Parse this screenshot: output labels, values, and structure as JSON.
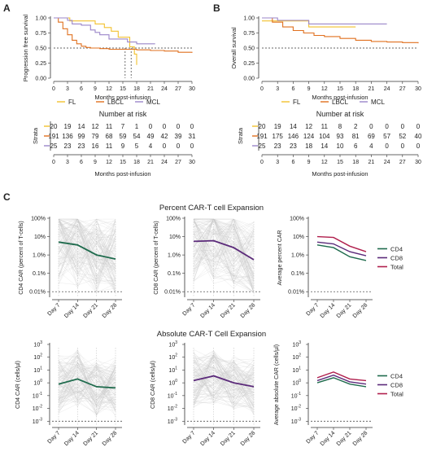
{
  "panel_labels": {
    "a": "A",
    "b": "B",
    "c": "C"
  },
  "section_titles": {
    "percent": "Percent CAR-T cell Expansion",
    "absolute": "Absolute CAR-T Cell Expansion"
  },
  "colors": {
    "FL": "#f2c12e",
    "LBCL": "#e0701f",
    "MCL": "#9b86c9",
    "CD4": "#1f6b4d",
    "CD8": "#5b2a7a",
    "Total": "#b01e4c",
    "grey": "#c8c8c8"
  },
  "km_legend": [
    {
      "key": "FL",
      "label": "FL"
    },
    {
      "key": "LBCL",
      "label": "LBCL"
    },
    {
      "key": "MCL",
      "label": "MCL"
    }
  ],
  "risk_title": "Number at risk",
  "strata_label": "Strata",
  "chart_data": [
    {
      "id": "pfs",
      "type": "line",
      "ylabel": "Progression free survival",
      "xlabel": "Months post-infusion",
      "x_ticks": [
        0,
        3,
        6,
        9,
        12,
        15,
        18,
        21,
        24,
        27,
        30
      ],
      "y_ticks": [
        0.0,
        0.25,
        0.5,
        0.75,
        1.0
      ],
      "y_tick_labels": [
        "0.00",
        "0.25",
        "0.50",
        "0.75",
        "1.00"
      ],
      "xlim": [
        0,
        30
      ],
      "ylim": [
        0,
        1
      ],
      "median_line": 0.5,
      "medians": [
        {
          "x": 15.5,
          "series": "FL"
        },
        {
          "x": 16.8,
          "series": "LBCL"
        }
      ],
      "series": [
        {
          "name": "FL",
          "x": [
            0,
            3.5,
            5,
            9,
            11,
            12.5,
            14,
            16.5,
            17.5,
            18
          ],
          "y": [
            1,
            0.95,
            0.95,
            0.9,
            0.84,
            0.78,
            0.68,
            0.52,
            0.4,
            0.22
          ]
        },
        {
          "name": "LBCL",
          "x": [
            0,
            1,
            2,
            3,
            4,
            5,
            6,
            7,
            8,
            9,
            10,
            12,
            15,
            18,
            21,
            24,
            27,
            30
          ],
          "y": [
            1,
            0.93,
            0.82,
            0.72,
            0.63,
            0.57,
            0.53,
            0.51,
            0.5,
            0.5,
            0.49,
            0.48,
            0.48,
            0.47,
            0.46,
            0.45,
            0.43,
            0.42
          ]
        },
        {
          "name": "MCL",
          "x": [
            0,
            3,
            4,
            6,
            8,
            9,
            10,
            12,
            16,
            18,
            22
          ],
          "y": [
            1,
            0.96,
            0.9,
            0.88,
            0.8,
            0.76,
            0.72,
            0.65,
            0.6,
            0.57,
            0.57
          ]
        }
      ],
      "risk_table": [
        {
          "series": "FL",
          "values": [
            20,
            19,
            14,
            12,
            11,
            7,
            1,
            0,
            0,
            0,
            0
          ]
        },
        {
          "series": "LBCL",
          "values": [
            191,
            136,
            99,
            79,
            68,
            59,
            54,
            49,
            42,
            39,
            31
          ]
        },
        {
          "series": "MCL",
          "values": [
            25,
            23,
            23,
            16,
            11,
            9,
            5,
            4,
            0,
            0,
            0
          ]
        }
      ]
    },
    {
      "id": "os",
      "type": "line",
      "ylabel": "Overall survival",
      "xlabel": "Months post-infusion",
      "x_ticks": [
        0,
        3,
        6,
        9,
        12,
        15,
        18,
        21,
        24,
        27,
        30
      ],
      "y_ticks": [
        0.0,
        0.25,
        0.5,
        0.75,
        1.0
      ],
      "y_tick_labels": [
        "0.00",
        "0.25",
        "0.50",
        "0.75",
        "1.00"
      ],
      "xlim": [
        0,
        30
      ],
      "ylim": [
        0,
        1
      ],
      "median_line": 0.5,
      "series": [
        {
          "name": "FL",
          "x": [
            0,
            9,
            18
          ],
          "y": [
            0.95,
            0.85,
            0.85
          ]
        },
        {
          "name": "LBCL",
          "x": [
            0,
            2,
            4,
            6,
            8,
            10,
            12,
            15,
            18,
            21,
            24,
            27,
            30
          ],
          "y": [
            1,
            0.93,
            0.85,
            0.79,
            0.75,
            0.71,
            0.69,
            0.66,
            0.63,
            0.61,
            0.6,
            0.59,
            0.58
          ]
        },
        {
          "name": "MCL",
          "x": [
            0,
            3,
            9,
            24
          ],
          "y": [
            1,
            0.96,
            0.9,
            0.9
          ]
        }
      ],
      "risk_table": [
        {
          "series": "FL",
          "values": [
            20,
            19,
            14,
            12,
            11,
            8,
            2,
            0,
            0,
            0,
            0
          ]
        },
        {
          "series": "LBCL",
          "values": [
            191,
            175,
            146,
            124,
            104,
            93,
            81,
            69,
            57,
            52,
            40
          ]
        },
        {
          "series": "MCL",
          "values": [
            25,
            23,
            23,
            18,
            14,
            10,
            6,
            4,
            0,
            0,
            0
          ]
        }
      ]
    },
    {
      "id": "cd4-percent",
      "type": "line",
      "ylabel": "CD4 CAR (percent of T-cells)",
      "categories": [
        "Day 7",
        "Day 14",
        "Day 21",
        "Day 28"
      ],
      "y_scale": "log",
      "ylim": [
        0.005,
        100
      ],
      "y_ticks": [
        0.01,
        0.1,
        1,
        10,
        100
      ],
      "y_tick_labels": [
        "0.01%",
        "0.1%",
        "1.0%",
        "10%",
        "100%"
      ],
      "reference_line": 0.01,
      "series": [
        {
          "name": "CD4",
          "values": [
            5,
            3.5,
            1.0,
            0.6
          ]
        }
      ]
    },
    {
      "id": "cd8-percent",
      "type": "line",
      "ylabel": "CD8 CAR (percent of T-cells)",
      "categories": [
        "Day 7",
        "Day 14",
        "Day 21",
        "Day 28"
      ],
      "y_scale": "log",
      "ylim": [
        0.005,
        100
      ],
      "y_ticks": [
        0.01,
        0.1,
        1,
        10,
        100
      ],
      "y_tick_labels": [
        "0.01%",
        "0.1%",
        "1.0%",
        "10%",
        "100%"
      ],
      "reference_line": 0.01,
      "series": [
        {
          "name": "CD8",
          "values": [
            5.5,
            6,
            2.5,
            0.55
          ]
        }
      ]
    },
    {
      "id": "avg-percent",
      "type": "line",
      "ylabel": "Average percent CAR",
      "categories": [
        "Day 7",
        "Day 14",
        "Day 21",
        "Day 28"
      ],
      "y_scale": "log",
      "ylim": [
        0.005,
        100
      ],
      "y_ticks": [
        0.01,
        0.1,
        1,
        10,
        100
      ],
      "y_tick_labels": [
        "0.01%",
        "0.1%",
        "1.0%",
        "10%",
        "100%"
      ],
      "reference_line": 0.01,
      "legend": [
        "CD4",
        "CD8",
        "Total"
      ],
      "series": [
        {
          "name": "CD4",
          "values": [
            3.5,
            2.5,
            0.8,
            0.5
          ]
        },
        {
          "name": "CD8",
          "values": [
            5,
            4,
            1.5,
            0.9
          ]
        },
        {
          "name": "Total",
          "values": [
            10,
            9,
            3,
            1.5
          ]
        }
      ]
    },
    {
      "id": "cd4-absolute",
      "type": "line",
      "ylabel": "CD4 CAR (cells/µl)",
      "categories": [
        "Day 7",
        "Day 14",
        "Day 21",
        "Day 28"
      ],
      "y_scale": "log",
      "ylim": [
        0.0005,
        1000
      ],
      "y_ticks": [
        0.001,
        0.01,
        0.1,
        1,
        10,
        100,
        1000
      ],
      "y_tick_labels": [
        "10",
        "10",
        "10",
        "10",
        "10",
        "10",
        "10"
      ],
      "y_tick_exponents": [
        "-3",
        "-2",
        "-1",
        "0",
        "1",
        "2",
        "3"
      ],
      "reference_line": 0.001,
      "series": [
        {
          "name": "CD4",
          "values": [
            0.8,
            2,
            0.5,
            0.4
          ]
        }
      ]
    },
    {
      "id": "cd8-absolute",
      "type": "line",
      "ylabel": "CD8 CAR (cells/µl)",
      "categories": [
        "Day 7",
        "Day 14",
        "Day 21",
        "Day 28"
      ],
      "y_scale": "log",
      "ylim": [
        0.0005,
        1000
      ],
      "y_ticks": [
        0.001,
        0.01,
        0.1,
        1,
        10,
        100,
        1000
      ],
      "y_tick_labels": [
        "10",
        "10",
        "10",
        "10",
        "10",
        "10",
        "10"
      ],
      "y_tick_exponents": [
        "-3",
        "-2",
        "-1",
        "0",
        "1",
        "2",
        "3"
      ],
      "reference_line": 0.001,
      "series": [
        {
          "name": "CD8",
          "values": [
            1.5,
            3.5,
            1.0,
            0.5
          ]
        }
      ]
    },
    {
      "id": "avg-absolute",
      "type": "line",
      "ylabel": "Average absolute CAR (cells/µl)",
      "categories": [
        "Day 7",
        "Day 14",
        "Day 21",
        "Day 28"
      ],
      "y_scale": "log",
      "ylim": [
        0.0005,
        1000
      ],
      "y_ticks": [
        0.001,
        0.01,
        0.1,
        1,
        10,
        100,
        1000
      ],
      "y_tick_labels": [
        "10",
        "10",
        "10",
        "10",
        "10",
        "10",
        "10"
      ],
      "y_tick_exponents": [
        "-3",
        "-2",
        "-1",
        "0",
        "1",
        "2",
        "3"
      ],
      "reference_line": 0.001,
      "legend": [
        "CD4",
        "CD8",
        "Total"
      ],
      "series": [
        {
          "name": "CD4",
          "values": [
            1,
            2.5,
            0.8,
            0.5
          ]
        },
        {
          "name": "CD8",
          "values": [
            1.5,
            4,
            1.2,
            0.8
          ]
        },
        {
          "name": "Total",
          "values": [
            2.5,
            7,
            2,
            1.5
          ]
        }
      ]
    }
  ]
}
